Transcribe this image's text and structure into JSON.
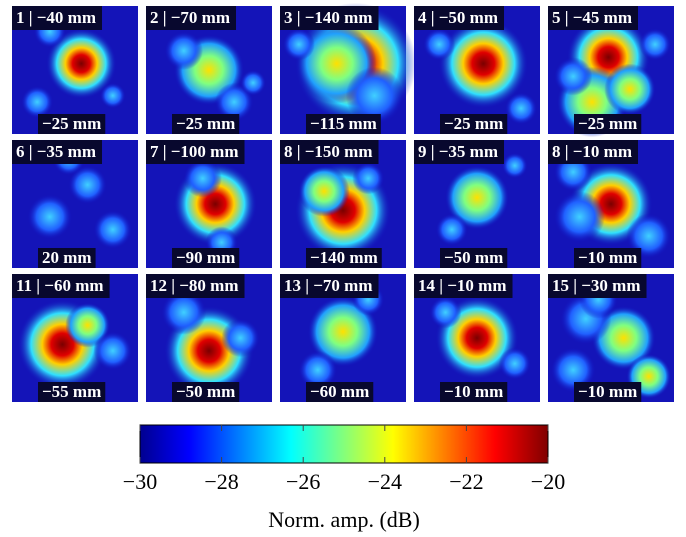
{
  "panels": [
    {
      "top": "1 | −40 mm",
      "bottom": "−25 mm"
    },
    {
      "top": "2 | −70 mm",
      "bottom": "−25 mm"
    },
    {
      "top": "3 | −140 mm",
      "bottom": "−115 mm"
    },
    {
      "top": "4 | −50 mm",
      "bottom": "−25 mm"
    },
    {
      "top": "5 | −45 mm",
      "bottom": "−25 mm"
    },
    {
      "top": "6 | −35 mm",
      "bottom": "20 mm"
    },
    {
      "top": "7 | −100 mm",
      "bottom": "−90 mm"
    },
    {
      "top": "8 | −150 mm",
      "bottom": "−140 mm"
    },
    {
      "top": "9 | −35 mm",
      "bottom": "−50 mm"
    },
    {
      "top": "8 | −10 mm",
      "bottom": "−10 mm"
    },
    {
      "top": "11 | −60 mm",
      "bottom": "−55 mm"
    },
    {
      "top": "12 | −80 mm",
      "bottom": "−50 mm"
    },
    {
      "top": "13 | −70 mm",
      "bottom": "−60 mm"
    },
    {
      "top": "14 | −10 mm",
      "bottom": "−10 mm"
    },
    {
      "top": "15 | −30 mm",
      "bottom": "−10 mm"
    }
  ],
  "colorbar": {
    "range": [
      -30,
      -20
    ],
    "ticks": [
      {
        "value": -30,
        "label": "−30"
      },
      {
        "value": -28,
        "label": "−28"
      },
      {
        "value": -26,
        "label": "−26"
      },
      {
        "value": -24,
        "label": "−24"
      },
      {
        "value": -22,
        "label": "−22"
      },
      {
        "value": -20,
        "label": "−20"
      }
    ],
    "label": "Norm. amp. (dB)"
  }
}
